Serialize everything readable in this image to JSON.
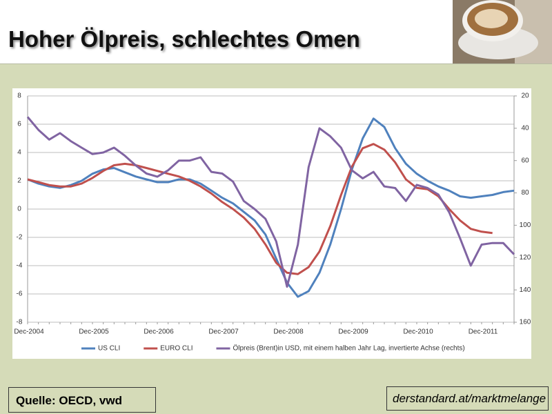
{
  "header": {
    "title": "Hoher Ölpreis, schlechtes Omen"
  },
  "footer": {
    "source": "Quelle: OECD, vwd",
    "link": "derstandard.at/marktmelange"
  },
  "chart_data": {
    "type": "line",
    "categories": [
      "Dec-2004",
      null,
      null,
      null,
      null,
      null,
      "Dec-2005",
      null,
      null,
      null,
      null,
      null,
      "Dec-2006",
      null,
      null,
      null,
      null,
      null,
      "Dec-2007",
      null,
      null,
      null,
      null,
      null,
      "Dec-2008",
      null,
      null,
      null,
      null,
      null,
      "Dec-2009",
      null,
      null,
      null,
      null,
      null,
      "Dec-2010",
      null,
      null,
      null,
      null,
      null,
      "Dec-2011",
      null,
      null,
      null
    ],
    "ylim": [
      -8,
      8
    ],
    "yticks": [
      -8,
      -6,
      -4,
      -2,
      0,
      2,
      4,
      6,
      8
    ],
    "y2lim": [
      20,
      160
    ],
    "y2ticks": [
      20,
      40,
      60,
      80,
      100,
      120,
      140,
      160
    ],
    "y2_inverted": true,
    "grid": true,
    "legend": "bottom",
    "series": [
      {
        "name": "US CLI",
        "color": "#4f81bd",
        "values": [
          2.1,
          1.8,
          1.6,
          1.5,
          1.7,
          2.0,
          2.5,
          2.8,
          2.9,
          2.6,
          2.3,
          2.1,
          1.9,
          1.9,
          2.1,
          2.1,
          1.8,
          1.3,
          0.8,
          0.4,
          -0.2,
          -0.8,
          -1.8,
          -3.5,
          -5.2,
          -6.2,
          -5.8,
          -4.5,
          -2.5,
          0.0,
          2.8,
          5.0,
          6.4,
          5.8,
          4.3,
          3.2,
          2.5,
          2.0,
          1.6,
          1.3,
          0.9,
          0.8,
          0.9,
          1.0,
          1.2,
          1.3
        ]
      },
      {
        "name": "EURO CLI",
        "color": "#c0504d",
        "values": [
          2.1,
          1.9,
          1.7,
          1.6,
          1.6,
          1.8,
          2.2,
          2.7,
          3.1,
          3.2,
          3.1,
          2.9,
          2.7,
          2.5,
          2.3,
          2.0,
          1.6,
          1.1,
          0.5,
          0.0,
          -0.6,
          -1.4,
          -2.5,
          -3.8,
          -4.5,
          -4.6,
          -4.1,
          -3.0,
          -1.2,
          1.0,
          3.0,
          4.3,
          4.6,
          4.2,
          3.3,
          2.1,
          1.5,
          1.4,
          0.9,
          0.0,
          -0.8,
          -1.4,
          -1.6,
          -1.7,
          null,
          null
        ]
      },
      {
        "name": "Ölpreis (Brent)in USD, mit einem halben Jahr Lag, invertierte Achse (rechts)",
        "color": "#8064a2",
        "axis": "y2",
        "values": [
          33,
          41,
          47,
          43,
          48,
          52,
          56,
          55,
          52,
          57,
          63,
          68,
          70,
          66,
          60,
          60,
          58,
          67,
          68,
          73,
          85,
          90,
          96,
          110,
          138,
          112,
          64,
          40,
          45,
          52,
          66,
          71,
          67,
          76,
          77,
          85,
          75,
          77,
          81,
          92,
          108,
          125,
          112,
          111,
          111,
          118
        ]
      }
    ]
  }
}
